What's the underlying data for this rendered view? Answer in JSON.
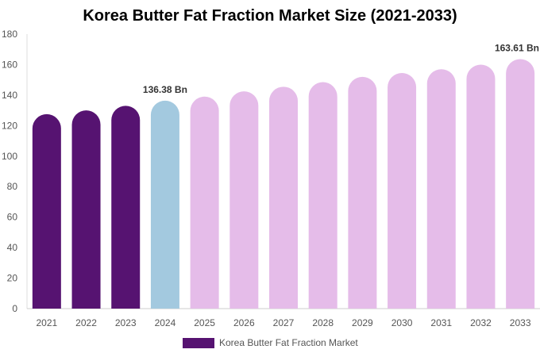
{
  "chart_data": {
    "type": "bar",
    "title": "Korea Butter Fat Fraction Market Size (2021-2033)",
    "categories": [
      "2021",
      "2022",
      "2023",
      "2024",
      "2025",
      "2026",
      "2027",
      "2028",
      "2029",
      "2030",
      "2031",
      "2032",
      "2033"
    ],
    "series": [
      {
        "name": "Korea Butter Fat Fraction Market",
        "values": [
          127.5,
          130.0,
          133.0,
          136.38,
          139.0,
          142.5,
          145.5,
          148.5,
          152.0,
          154.5,
          157.0,
          160.0,
          163.61
        ]
      }
    ],
    "data_labels": [
      {
        "category": "2024",
        "text": "136.38 Bn"
      },
      {
        "category": "2033",
        "text": "163.61 Bn"
      }
    ],
    "xlabel": "",
    "ylabel": "",
    "ylim": [
      0,
      180
    ],
    "yticks": [
      0,
      20,
      40,
      60,
      80,
      100,
      120,
      140,
      160,
      180
    ],
    "grid": false,
    "legend_position": "bottom",
    "colors": {
      "historical": "#561371",
      "base_year": "#a3c9df",
      "forecast": "#e5bce9"
    },
    "bar_colors": [
      "historical",
      "historical",
      "historical",
      "base_year",
      "forecast",
      "forecast",
      "forecast",
      "forecast",
      "forecast",
      "forecast",
      "forecast",
      "forecast",
      "forecast"
    ]
  }
}
